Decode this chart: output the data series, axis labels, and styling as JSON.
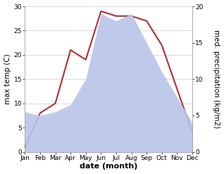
{
  "months": [
    "Jan",
    "Feb",
    "Mar",
    "Apr",
    "May",
    "Jun",
    "Jul",
    "Aug",
    "Sep",
    "Oct",
    "Nov",
    "Dec"
  ],
  "temperature": [
    1,
    8,
    10,
    21,
    19,
    29,
    28,
    28,
    27,
    22,
    13,
    4
  ],
  "precipitation": [
    5.5,
    5,
    5.5,
    6.5,
    10,
    19,
    18,
    19,
    15,
    11,
    7.5,
    4
  ],
  "temp_ylim": [
    0,
    30
  ],
  "precip_ylim": [
    0,
    20
  ],
  "temp_color": "#b03030",
  "precip_fill_color": "#b8c4e8",
  "xlabel": "date (month)",
  "ylabel_left": "max temp (C)",
  "ylabel_right": "med. precipitation (kg/m2)",
  "bg_color": "#ffffff",
  "grid_color": "#cccccc",
  "label_fontsize": 7.5,
  "tick_fontsize": 6.5,
  "xlabel_fontsize": 8,
  "temp_yticks": [
    0,
    5,
    10,
    15,
    20,
    25,
    30
  ],
  "precip_yticks": [
    0,
    5,
    10,
    15,
    20
  ]
}
